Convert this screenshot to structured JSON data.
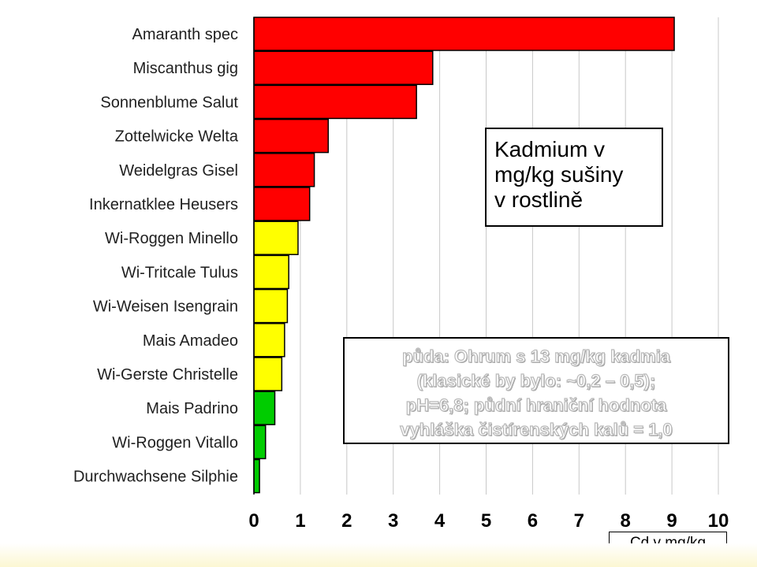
{
  "chart_data": {
    "type": "bar",
    "orientation": "horizontal",
    "categories": [
      "Amaranth spec",
      "Miscanthus gig",
      "Sonnenblume Salut",
      "Zottelwicke Welta",
      "Weidelgras Gisel",
      "Inkernatklee Heusers",
      "Wi-Roggen Minello",
      "Wi-Tritcale Tulus",
      "Wi-Weisen Isengrain",
      "Mais Amadeo",
      "Wi-Gerste Christelle",
      "Mais Padrino",
      "Wi-Roggen Vitallo",
      "Durchwachsene Silphie"
    ],
    "values": [
      9.05,
      3.85,
      3.5,
      1.6,
      1.3,
      1.2,
      0.95,
      0.75,
      0.72,
      0.66,
      0.6,
      0.45,
      0.25,
      0.12
    ],
    "bar_colors": [
      "#ff0000",
      "#ff0000",
      "#ff0000",
      "#ff0000",
      "#ff0000",
      "#ff0000",
      "#ffff00",
      "#ffff00",
      "#ffff00",
      "#ffff00",
      "#ffff00",
      "#00cc00",
      "#00cc00",
      "#00cc00"
    ],
    "xlim": [
      0,
      10
    ],
    "xticks": [
      "0",
      "1",
      "2",
      "3",
      "4",
      "5",
      "6",
      "7",
      "8",
      "9",
      "10"
    ],
    "xlabel": "Cd v mg/kg",
    "grid": "vertical",
    "title": "Kadmium v\nmg/kg sušiny\nv rostlině",
    "annotation": [
      "půda: Ohrum s 13 mg/kg kadmia",
      "(klasické by bylo: ~0,2 – 0,5);",
      "pH=6,8; půdní hraniční hodnota",
      "vyhláška čistírenských kalů = 1,0"
    ]
  }
}
